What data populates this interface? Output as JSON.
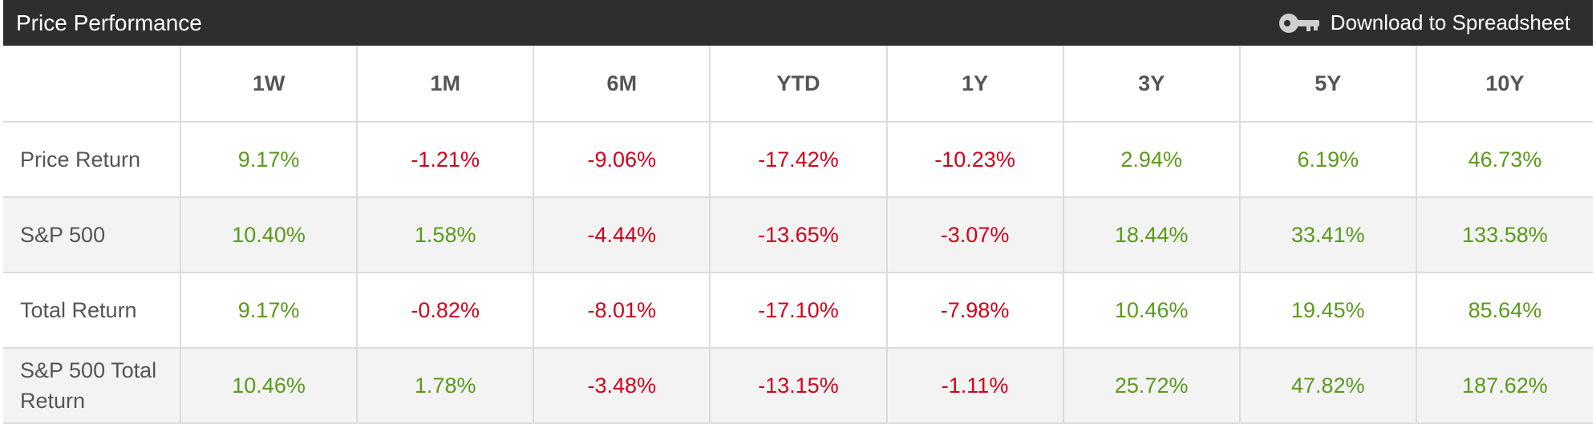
{
  "header": {
    "title": "Price Performance",
    "download_label": "Download to Spreadsheet",
    "download_icon": "key-icon"
  },
  "table": {
    "columns": [
      "1W",
      "1M",
      "6M",
      "YTD",
      "1Y",
      "3Y",
      "5Y",
      "10Y"
    ],
    "rows": [
      {
        "label": "Price Return",
        "values": [
          "9.17%",
          "-1.21%",
          "-9.06%",
          "-17.42%",
          "-10.23%",
          "2.94%",
          "6.19%",
          "46.73%"
        ]
      },
      {
        "label": "S&P 500",
        "values": [
          "10.40%",
          "1.58%",
          "-4.44%",
          "-13.65%",
          "-3.07%",
          "18.44%",
          "33.41%",
          "133.58%"
        ]
      },
      {
        "label": "Total Return",
        "values": [
          "9.17%",
          "-0.82%",
          "-8.01%",
          "-17.10%",
          "-7.98%",
          "10.46%",
          "19.45%",
          "85.64%"
        ]
      },
      {
        "label": "S&P 500 Total Return",
        "values": [
          "10.46%",
          "1.78%",
          "-3.48%",
          "-13.15%",
          "-1.11%",
          "25.72%",
          "47.82%",
          "187.62%"
        ]
      }
    ]
  },
  "colors": {
    "header_bg": "#2e2e2e",
    "positive": "#5a9a1a",
    "negative": "#d0021b",
    "alt_row": "#f3f3f3"
  }
}
